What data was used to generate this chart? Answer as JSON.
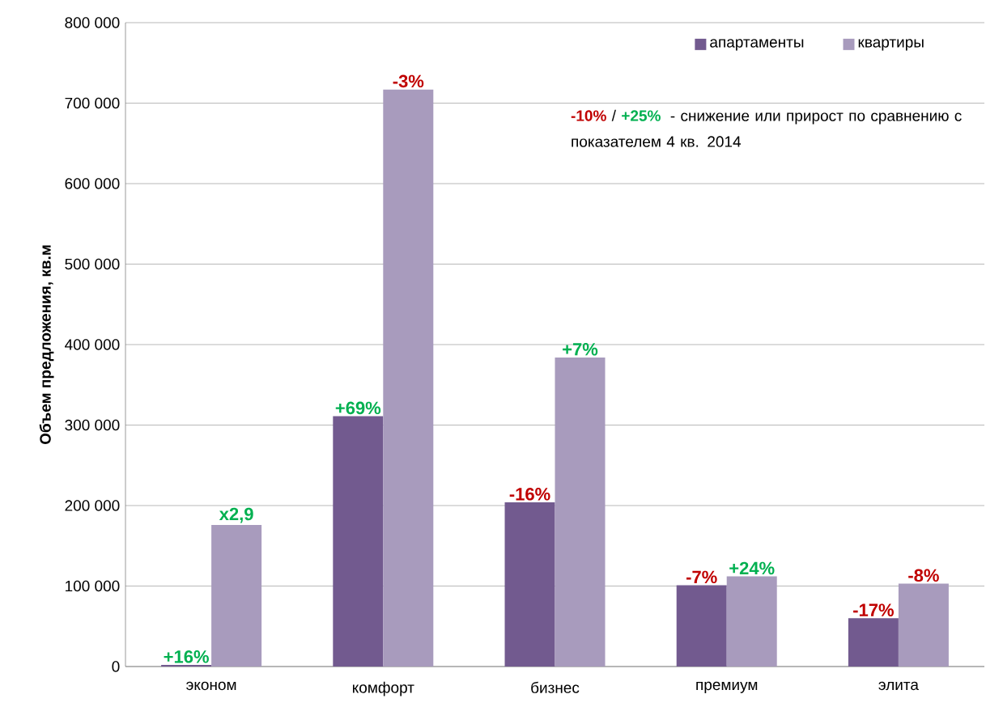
{
  "chart_data": {
    "type": "bar",
    "ylabel": "Объем предложения, кв.м",
    "categories": [
      "эконом",
      "комфорт",
      "бизнес",
      "премиум",
      "элита"
    ],
    "series": [
      {
        "name": "апартаменты",
        "color": "#725a8f",
        "values": [
          2000,
          311000,
          204000,
          101000,
          60000
        ]
      },
      {
        "name": "квартиры",
        "color": "#a89bbd",
        "values": [
          176000,
          717000,
          384000,
          112000,
          103000
        ]
      }
    ],
    "ylim": [
      0,
      800000
    ],
    "yticks": [
      0,
      {
        "value": 100000,
        "label": "100 000"
      },
      {
        "value": 200000,
        "label": "200 000"
      },
      {
        "value": 300000,
        "label": "300 000"
      },
      {
        "value": 400000,
        "label": "400 000"
      },
      {
        "value": 500000,
        "label": "500 000"
      },
      {
        "value": 600000,
        "label": "600 000"
      },
      {
        "value": 700000,
        "label": "700 000"
      },
      {
        "value": 800000,
        "label": "800 000"
      }
    ],
    "grid": "y",
    "legend": "top right",
    "annotations": [
      "-10%",
      "/",
      "+25%",
      "- снижение или прирост  по сравнению с показателем 4 кв. 2014",
      {
        "text": "+16%",
        "x": "эконом",
        "y": 2000
      },
      {
        "text": "x2,9",
        "x": "эконом",
        "y": 176000
      },
      {
        "text": "+69%",
        "x": "комфорт",
        "y": 311000
      },
      {
        "text": "-3%",
        "x": "комфорт",
        "y": 717000
      },
      {
        "text": "-16%",
        "x": "бизнес",
        "y": 204000
      },
      {
        "text": "+7%",
        "x": "бизнес",
        "y": 384000
      },
      {
        "text": "-7%",
        "x": "премиум",
        "y": 101000
      },
      {
        "text": "+24%",
        "x": "премиум",
        "y": 112000
      },
      {
        "text": "-17%",
        "x": "элита",
        "y": 60000
      },
      {
        "text": "-8%",
        "x": "элита",
        "y": 103000
      }
    ]
  }
}
